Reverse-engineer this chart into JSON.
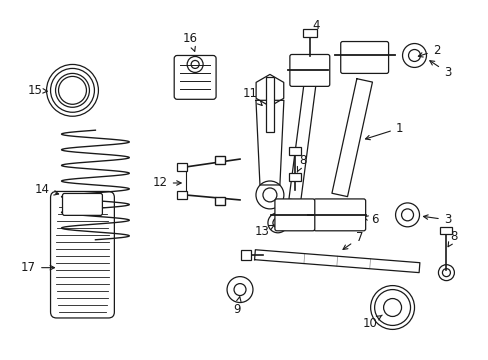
{
  "bg_color": "#ffffff",
  "line_color": "#1a1a1a",
  "fig_width": 4.89,
  "fig_height": 3.6,
  "dpi": 100,
  "title_fontsize": 7,
  "label_fontsize": 8.5
}
